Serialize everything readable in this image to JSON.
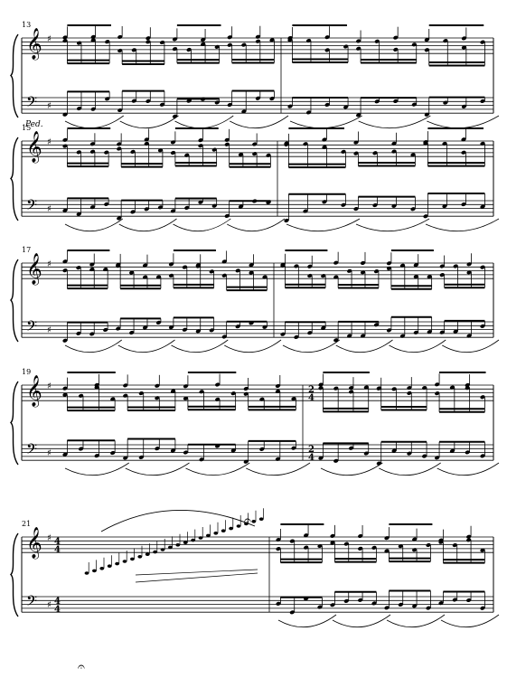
{
  "document": {
    "type": "sheet-music-page",
    "key_signature": "G major (one sharp)",
    "systems": [
      {
        "measure_numbers": [
          "13"
        ],
        "time_signature": null
      },
      {
        "measure_numbers": [
          "15"
        ],
        "time_signature": null
      },
      {
        "measure_numbers": [
          "17"
        ],
        "time_signature": null
      },
      {
        "measure_numbers": [
          "19"
        ],
        "time_signature": {
          "after_barline": true,
          "top": "2",
          "bottom": "4"
        }
      },
      {
        "measure_numbers": [
          "21"
        ],
        "time_signature": {
          "after_barline": false,
          "top": "4",
          "bottom": "4"
        }
      }
    ],
    "pedal_mark": "Ped.",
    "fermata_glyph": "𝄐"
  }
}
